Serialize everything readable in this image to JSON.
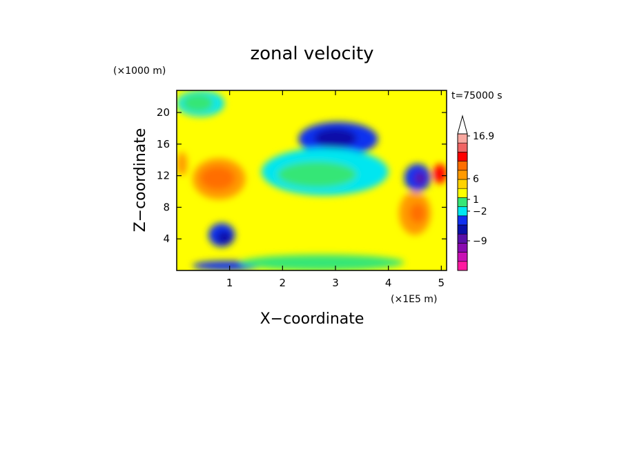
{
  "chart_data": {
    "type": "heatmap",
    "title": "zonal velocity",
    "xlabel": "X−coordinate",
    "ylabel": "Z−coordinate",
    "x_unit": "(×1E5 m)",
    "y_unit": "(×1000 m)",
    "time_label": "t=75000 s",
    "xlim": [
      0,
      5.1
    ],
    "ylim": [
      0,
      22.8
    ],
    "x_ticks": [
      1,
      2,
      3,
      4,
      5
    ],
    "y_ticks": [
      4,
      8,
      12,
      16,
      20
    ],
    "colorbar": {
      "levels": [
        {
          "color": "#ff1aa0"
        },
        {
          "color": "#c810b4"
        },
        {
          "color": "#8a0ab0"
        },
        {
          "color": "#5a10a8"
        },
        {
          "color": "#0a10a8"
        },
        {
          "color": "#1030f0"
        },
        {
          "color": "#00e6f0"
        },
        {
          "color": "#36e676"
        },
        {
          "color": "#ffff00"
        },
        {
          "color": "#ffd200"
        },
        {
          "color": "#ff9a00"
        },
        {
          "color": "#ff6e00"
        },
        {
          "color": "#ff0000"
        },
        {
          "color": "#f06464"
        },
        {
          "color": "#f8a8a0"
        }
      ],
      "labels": [
        "16.9",
        "6",
        "1",
        "−2",
        "−9"
      ],
      "extend": "max",
      "arrow_color": "#ffffff"
    },
    "field": {
      "background_color": "#ffff00",
      "regions": [
        {
          "name": "top-left-cyan",
          "color": "#00e6f0",
          "x": [
            0.0,
            0.9
          ],
          "z": [
            19.5,
            22.8
          ]
        },
        {
          "name": "top-left-green",
          "color": "#36e676",
          "x": [
            0.1,
            0.7
          ],
          "z": [
            20.0,
            22.4
          ]
        },
        {
          "name": "left-orange-core",
          "color": "#ff9a00",
          "x": [
            0.3,
            1.3
          ],
          "z": [
            9.0,
            14.2
          ]
        },
        {
          "name": "left-red-core",
          "color": "#ff6e00",
          "x": [
            0.45,
            1.1
          ],
          "z": [
            10.2,
            13.2
          ]
        },
        {
          "name": "left-edge-orange",
          "color": "#ff9a00",
          "x": [
            0.0,
            0.2
          ],
          "z": [
            12.0,
            15.0
          ]
        },
        {
          "name": "lower-left-blue",
          "color": "#1030f0",
          "x": [
            0.6,
            1.1
          ],
          "z": [
            3.0,
            6.0
          ]
        },
        {
          "name": "lower-left-navy",
          "color": "#0a10a8",
          "x": [
            0.75,
            1.05
          ],
          "z": [
            3.3,
            5.0
          ]
        },
        {
          "name": "bottom-blue-strip",
          "color": "#1030f0",
          "x": [
            0.3,
            1.6
          ],
          "z": [
            0.0,
            1.2
          ]
        },
        {
          "name": "upper-middle-blue",
          "color": "#1030f0",
          "x": [
            2.3,
            3.8
          ],
          "z": [
            14.5,
            18.8
          ]
        },
        {
          "name": "upper-middle-navy",
          "color": "#0a10a8",
          "x": [
            2.6,
            3.4
          ],
          "z": [
            15.5,
            18.0
          ]
        },
        {
          "name": "middle-cyan",
          "color": "#00e6f0",
          "x": [
            1.6,
            4.0
          ],
          "z": [
            9.5,
            15.5
          ]
        },
        {
          "name": "middle-green",
          "color": "#36e676",
          "x": [
            1.9,
            3.4
          ],
          "z": [
            10.5,
            13.8
          ]
        },
        {
          "name": "right-blue",
          "color": "#1030f0",
          "x": [
            4.3,
            4.8
          ],
          "z": [
            10.0,
            13.5
          ]
        },
        {
          "name": "right-navy",
          "color": "#5a10a8",
          "x": [
            4.5,
            4.7
          ],
          "z": [
            10.8,
            12.5
          ]
        },
        {
          "name": "right-orange",
          "color": "#ff9a00",
          "x": [
            4.2,
            4.8
          ],
          "z": [
            4.5,
            10.0
          ]
        },
        {
          "name": "right-red",
          "color": "#ff6e00",
          "x": [
            4.4,
            4.7
          ],
          "z": [
            6.0,
            8.5
          ]
        },
        {
          "name": "far-right-red",
          "color": "#ff0000",
          "x": [
            4.85,
            5.1
          ],
          "z": [
            11.0,
            13.5
          ]
        },
        {
          "name": "bottom-green-band",
          "color": "#36e676",
          "x": [
            1.2,
            4.3
          ],
          "z": [
            0.0,
            2.0
          ]
        }
      ]
    }
  }
}
